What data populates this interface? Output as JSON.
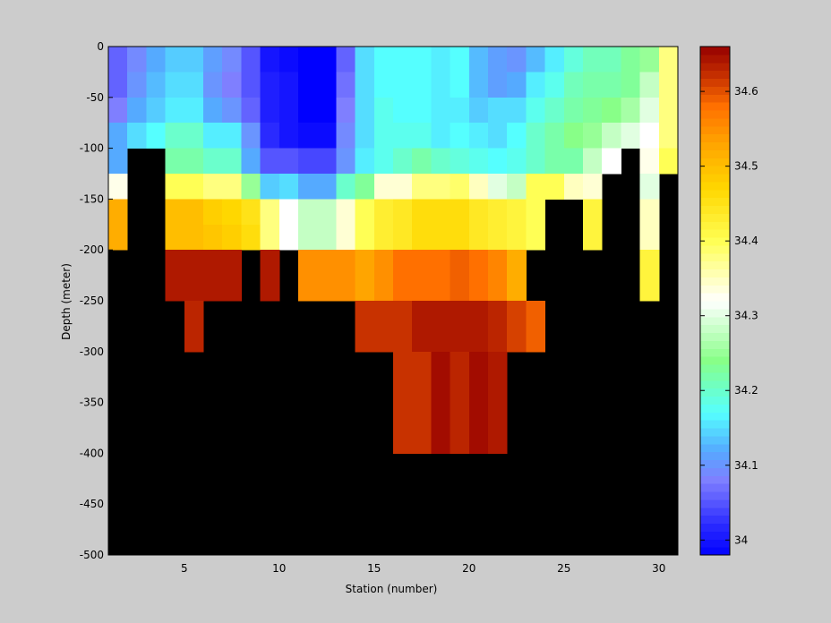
{
  "chart_data": [
    {
      "type": "heatmap",
      "xlabel": "Station (number)",
      "ylabel": "Depth (meter)",
      "xlim": [
        1,
        31
      ],
      "ylim": [
        -500,
        0
      ],
      "xticks": [
        5,
        10,
        15,
        20,
        25,
        30
      ],
      "yticks": [
        0,
        -50,
        -100,
        -150,
        -200,
        -250,
        -300,
        -350,
        -400,
        -450,
        -500
      ],
      "x": [
        1,
        2,
        3,
        4,
        5,
        6,
        7,
        8,
        9,
        10,
        11,
        12,
        13,
        14,
        15,
        16,
        17,
        18,
        19,
        20,
        21,
        22,
        23,
        24,
        25,
        26,
        27,
        28,
        29,
        30
      ],
      "depth_bins": [
        [
          0,
          -25
        ],
        [
          -25,
          -50
        ],
        [
          -50,
          -75
        ],
        [
          -75,
          -100
        ],
        [
          -100,
          -125
        ],
        [
          -125,
          -150
        ],
        [
          -150,
          -175
        ],
        [
          -175,
          -200
        ],
        [
          -200,
          -225
        ],
        [
          -225,
          -250
        ],
        [
          -250,
          -275
        ],
        [
          -275,
          -300
        ],
        [
          -300,
          -325
        ],
        [
          -325,
          -350
        ],
        [
          -350,
          -375
        ],
        [
          -375,
          -400
        ]
      ],
      "no_data_color": "#000000",
      "cmap": [
        "#0000ff",
        "#2a2aff",
        "#5555ff",
        "#7f7fff",
        "#55aaff",
        "#55ffff",
        "#88ff88",
        "#ffffff",
        "#ffff55",
        "#ffd700",
        "#ffa500",
        "#ff7000",
        "#c83200",
        "#960000"
      ],
      "color_stops": [
        33.98,
        34.02,
        34.05,
        34.08,
        34.12,
        34.17,
        34.24,
        34.32,
        34.4,
        34.47,
        34.53,
        34.58,
        34.62,
        34.66
      ],
      "values": [
        [
          34.06,
          34.09,
          34.12,
          34.14,
          34.14,
          34.11,
          34.09,
          34.05,
          34.0,
          33.99,
          33.98,
          33.98,
          34.06,
          34.15,
          34.17,
          34.17,
          34.17,
          34.16,
          34.17,
          34.13,
          34.11,
          34.1,
          34.13,
          34.16,
          34.19,
          34.21,
          34.21,
          34.23,
          34.25,
          34.38
        ],
        [
          34.06,
          34.1,
          34.13,
          34.15,
          34.15,
          34.1,
          34.08,
          34.05,
          34.01,
          34.0,
          33.98,
          33.98,
          34.07,
          34.15,
          34.17,
          34.17,
          34.17,
          34.16,
          34.17,
          34.13,
          34.11,
          34.12,
          34.16,
          34.18,
          34.21,
          34.22,
          34.22,
          34.23,
          34.28,
          34.38
        ],
        [
          34.08,
          34.12,
          34.14,
          34.16,
          34.16,
          34.12,
          34.1,
          34.06,
          34.01,
          34.0,
          33.98,
          33.98,
          34.08,
          34.15,
          34.18,
          34.17,
          34.17,
          34.16,
          34.16,
          34.14,
          34.15,
          34.15,
          34.18,
          34.2,
          34.22,
          34.23,
          34.24,
          34.26,
          34.3,
          34.38
        ],
        [
          34.12,
          34.15,
          34.17,
          34.2,
          34.2,
          34.16,
          34.16,
          34.1,
          34.02,
          34.0,
          33.99,
          33.99,
          34.09,
          34.15,
          34.18,
          34.18,
          34.18,
          34.16,
          34.17,
          34.16,
          34.15,
          34.17,
          34.2,
          34.22,
          34.24,
          34.25,
          34.28,
          34.3,
          34.32,
          34.38
        ],
        [
          34.12,
          null,
          null,
          34.22,
          34.22,
          34.2,
          34.2,
          34.12,
          34.05,
          34.05,
          34.04,
          34.04,
          34.1,
          34.16,
          34.18,
          34.2,
          34.22,
          34.2,
          34.19,
          34.18,
          34.17,
          34.18,
          34.2,
          34.22,
          34.22,
          34.28,
          34.32,
          null,
          34.33,
          34.4
        ],
        [
          34.33,
          null,
          null,
          34.4,
          34.4,
          34.38,
          34.38,
          34.25,
          34.14,
          34.15,
          34.12,
          34.12,
          34.2,
          34.23,
          34.34,
          34.34,
          34.38,
          34.38,
          34.39,
          34.35,
          34.3,
          34.28,
          34.4,
          34.4,
          34.35,
          34.34,
          null,
          null,
          34.3,
          null
        ],
        [
          34.52,
          null,
          null,
          34.5,
          34.5,
          34.48,
          34.47,
          34.45,
          34.38,
          34.32,
          34.28,
          34.28,
          34.34,
          34.4,
          34.43,
          34.44,
          34.46,
          34.46,
          34.46,
          34.44,
          34.43,
          34.42,
          34.4,
          null,
          null,
          34.42,
          null,
          null,
          34.35,
          null
        ],
        [
          34.52,
          null,
          null,
          34.5,
          34.5,
          34.49,
          34.48,
          34.46,
          34.38,
          34.32,
          34.28,
          34.28,
          34.34,
          34.4,
          34.43,
          34.44,
          34.46,
          34.46,
          34.46,
          34.44,
          34.43,
          34.42,
          34.4,
          null,
          null,
          34.42,
          null,
          null,
          34.35,
          null
        ],
        [
          null,
          null,
          null,
          34.64,
          34.64,
          34.64,
          34.64,
          null,
          34.64,
          null,
          34.55,
          34.55,
          34.55,
          34.53,
          34.55,
          34.58,
          34.58,
          34.58,
          34.59,
          34.58,
          34.56,
          34.52,
          null,
          null,
          null,
          null,
          null,
          null,
          34.42,
          null
        ],
        [
          null,
          null,
          null,
          34.64,
          34.64,
          34.64,
          34.64,
          null,
          34.64,
          null,
          34.55,
          34.55,
          34.55,
          34.53,
          34.55,
          34.58,
          34.58,
          34.58,
          34.59,
          34.58,
          34.56,
          34.52,
          null,
          null,
          null,
          null,
          null,
          null,
          34.42,
          null
        ],
        [
          null,
          null,
          null,
          null,
          34.63,
          null,
          null,
          null,
          null,
          null,
          null,
          null,
          null,
          34.62,
          34.62,
          34.62,
          34.64,
          34.64,
          34.64,
          34.64,
          34.63,
          34.61,
          34.59,
          null,
          null,
          null,
          null,
          null,
          null,
          null
        ],
        [
          null,
          null,
          null,
          null,
          34.63,
          null,
          null,
          null,
          null,
          null,
          null,
          null,
          null,
          34.62,
          34.62,
          34.62,
          34.64,
          34.64,
          34.64,
          34.64,
          34.63,
          34.61,
          34.59,
          null,
          null,
          null,
          null,
          null,
          null,
          null
        ],
        [
          null,
          null,
          null,
          null,
          null,
          null,
          null,
          null,
          null,
          null,
          null,
          null,
          null,
          null,
          null,
          34.62,
          34.62,
          34.65,
          34.63,
          34.65,
          34.64,
          null,
          null,
          null,
          null,
          null,
          null,
          null,
          null,
          null
        ],
        [
          null,
          null,
          null,
          null,
          null,
          null,
          null,
          null,
          null,
          null,
          null,
          null,
          null,
          null,
          null,
          34.62,
          34.62,
          34.65,
          34.63,
          34.65,
          34.64,
          null,
          null,
          null,
          null,
          null,
          null,
          null,
          null,
          null
        ],
        [
          null,
          null,
          null,
          null,
          null,
          null,
          null,
          null,
          null,
          null,
          null,
          null,
          null,
          null,
          null,
          34.62,
          34.62,
          34.65,
          34.63,
          34.65,
          34.64,
          null,
          null,
          null,
          null,
          null,
          null,
          null,
          null,
          null
        ],
        [
          null,
          null,
          null,
          null,
          null,
          null,
          null,
          null,
          null,
          null,
          null,
          null,
          null,
          null,
          null,
          34.62,
          34.62,
          34.65,
          34.63,
          34.65,
          34.64,
          null,
          null,
          null,
          null,
          null,
          null,
          null,
          null,
          null
        ]
      ]
    },
    {
      "type": "colorbar",
      "range": [
        33.98,
        34.66
      ],
      "ticks": [
        34,
        34.1,
        34.2,
        34.3,
        34.4,
        34.5,
        34.6
      ],
      "levels": 64
    }
  ]
}
